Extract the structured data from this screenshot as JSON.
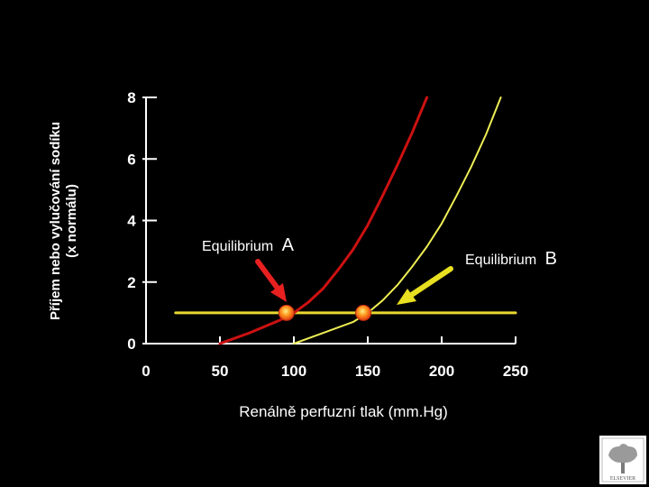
{
  "chart_data": {
    "type": "line",
    "xlabel": "Renálně perfuzní tlak (mm.Hg)",
    "ylabel_line1": "Příjem nebo vylučování sodíku",
    "ylabel_line2": "(x normálu)",
    "xlim": [
      0,
      250
    ],
    "ylim": [
      0,
      8
    ],
    "x_ticks": [
      0,
      50,
      100,
      150,
      200,
      250
    ],
    "y_ticks": [
      0,
      2,
      4,
      6,
      8
    ],
    "grid": false,
    "series": [
      {
        "color": "#cc1111",
        "points": [
          [
            50,
            0.0
          ],
          [
            70,
            0.35
          ],
          [
            90,
            0.75
          ],
          [
            100,
            1.0
          ],
          [
            110,
            1.35
          ],
          [
            120,
            1.8
          ],
          [
            130,
            2.4
          ],
          [
            140,
            3.05
          ],
          [
            150,
            3.85
          ],
          [
            160,
            4.8
          ],
          [
            170,
            5.8
          ],
          [
            180,
            6.85
          ],
          [
            190,
            8.0
          ]
        ]
      },
      {
        "color": "#eeee55",
        "points": [
          [
            100,
            0.0
          ],
          [
            120,
            0.35
          ],
          [
            140,
            0.7
          ],
          [
            150,
            1.0
          ],
          [
            160,
            1.4
          ],
          [
            170,
            1.9
          ],
          [
            180,
            2.5
          ],
          [
            190,
            3.15
          ],
          [
            200,
            3.9
          ],
          [
            210,
            4.8
          ],
          [
            220,
            5.75
          ],
          [
            230,
            6.8
          ],
          [
            240,
            8.0
          ]
        ]
      },
      {
        "color": "#e8d830",
        "points": [
          [
            20,
            1.0
          ],
          [
            250,
            1.0
          ]
        ]
      }
    ],
    "equilibria": [
      {
        "x": 95,
        "y": 1.0
      },
      {
        "x": 147,
        "y": 1.0
      }
    ],
    "annotations": [
      {
        "text": "Equilibrium",
        "letter": "A",
        "arrow_color": "#e82020"
      },
      {
        "text": "Equilibrium",
        "letter": "B",
        "arrow_color": "#e8e020"
      }
    ],
    "logo_text": "ELSEVIER"
  }
}
